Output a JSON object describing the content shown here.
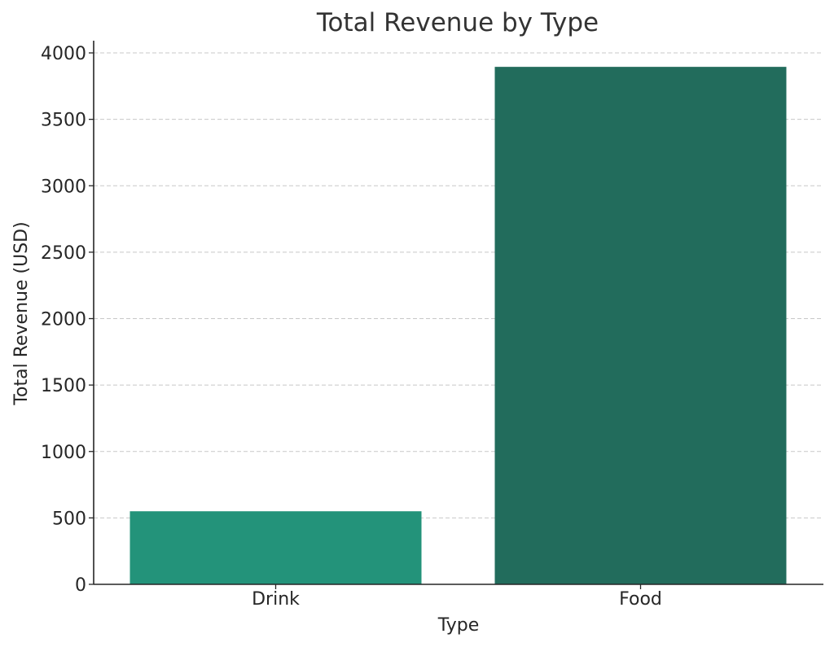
{
  "chart_data": {
    "type": "bar",
    "title": "Total Revenue by Type",
    "xlabel": "Type",
    "ylabel": "Total Revenue (USD)",
    "categories": [
      "Drink",
      "Food"
    ],
    "values": [
      550,
      3895
    ],
    "ylim": [
      0,
      4100
    ],
    "yticks": [
      0,
      500,
      1000,
      1500,
      2000,
      2500,
      3000,
      3500,
      4000
    ],
    "grid": "y-dashed",
    "colors": [
      "#23937a",
      "#226c5c"
    ]
  }
}
